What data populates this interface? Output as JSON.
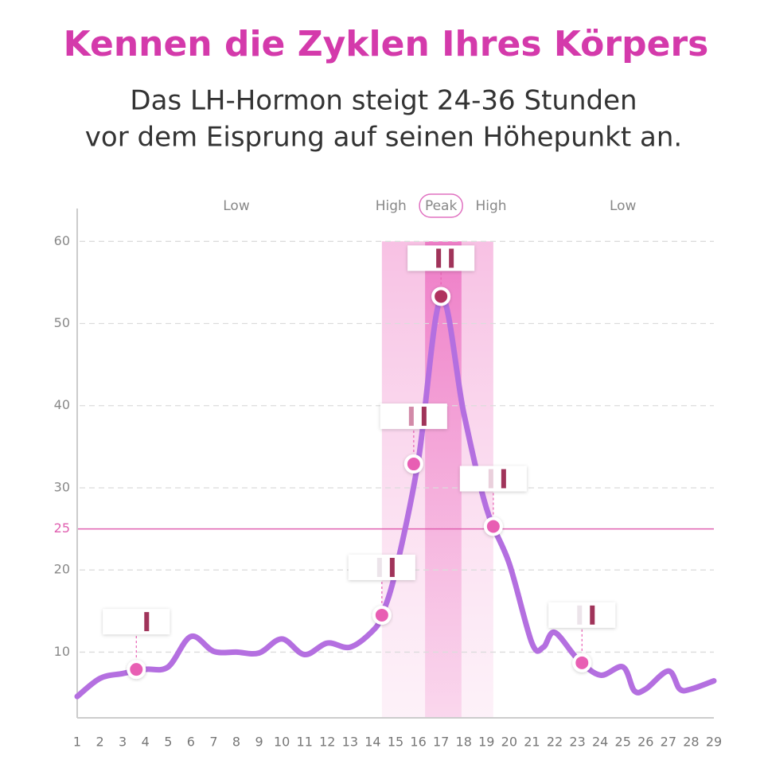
{
  "chart_data": {
    "type": "line",
    "title": "Kennen die Zyklen Ihres Körpers",
    "subtitle": [
      "Das LH-Hormon steigt 24-36 Stunden",
      "vor dem Eisprung auf seinen Höhepunkt an."
    ],
    "x": [
      1,
      2,
      3,
      4,
      5,
      6,
      7,
      8,
      9,
      10,
      11,
      12,
      13,
      14,
      14.4,
      15,
      16,
      17,
      18,
      19,
      20,
      21,
      21.5,
      22,
      23,
      24,
      25,
      25.5,
      26,
      27,
      27.5,
      28,
      29
    ],
    "series": [
      {
        "color": "#b46fe0",
        "values": [
          4.6,
          6.8,
          7.4,
          7.9,
          8.2,
          11.9,
          10.1,
          10,
          9.9,
          11.6,
          9.7,
          11.1,
          10.6,
          12.6,
          14.5,
          19.8,
          33.3,
          53.1,
          39.1,
          27.5,
          20.8,
          11.1,
          10.6,
          12.4,
          9.2,
          7.2,
          8.2,
          5.3,
          5.5,
          7.7,
          5.5,
          5.5,
          6.5
        ]
      }
    ],
    "points": {
      "x": [
        3.6,
        14.4,
        15.8,
        17,
        19.3,
        23.2
      ],
      "values": [
        7.9,
        14.5,
        32.9,
        53.3,
        25.3,
        8.7
      ],
      "color": "#e85fb3",
      "peak_color": "#b0305f",
      "test_line_colors": [
        "#ffffff",
        "#ece4ea",
        "#d28aa8",
        "#a0345a",
        "#ead0dc",
        "#ece4ea"
      ]
    },
    "threshold": 25,
    "threshold_color": "#e060b0",
    "zones": [
      {
        "label": "Low",
        "x": 8
      },
      {
        "label": "High",
        "x": 14.8
      },
      {
        "label": "Peak",
        "x": 17
      },
      {
        "label": "High",
        "x": 19.2
      },
      {
        "label": "Low",
        "x": 25
      }
    ],
    "high_band": [
      14.4,
      19.3
    ],
    "peak_band": [
      16.3,
      17.9
    ],
    "xlim": [
      1,
      29
    ],
    "xticks": [
      1,
      2,
      3,
      4,
      5,
      6,
      7,
      8,
      9,
      10,
      11,
      12,
      13,
      14,
      15,
      16,
      17,
      18,
      19,
      20,
      21,
      22,
      23,
      24,
      25,
      26,
      27,
      28,
      29
    ],
    "ylim": [
      2,
      64
    ],
    "yticks": [
      10,
      20,
      30,
      40,
      50,
      60
    ],
    "grid": true
  }
}
